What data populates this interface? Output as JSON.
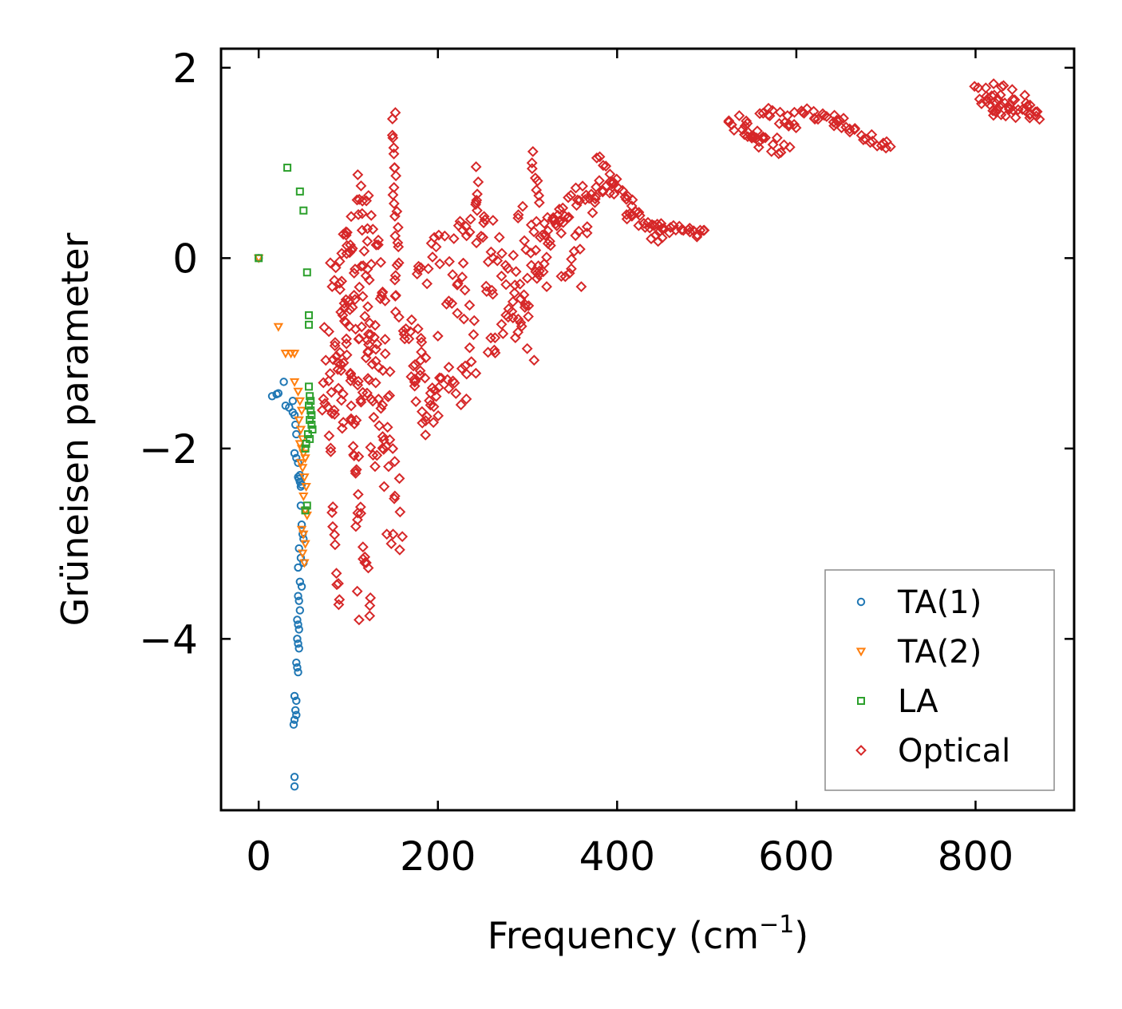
{
  "chart_data": {
    "type": "scatter",
    "title": "",
    "xlabel": "Frequency (cm",
    "xlabel_sup": "−1",
    "xlabel_close": ")",
    "ylabel": "Grüneisen parameter",
    "xlim": [
      -42,
      910
    ],
    "ylim": [
      -5.8,
      2.2
    ],
    "xticks": [
      0,
      200,
      400,
      600,
      800
    ],
    "xtick_labels": [
      "0",
      "200",
      "400",
      "600",
      "800"
    ],
    "yticks": [
      -4,
      -2,
      0,
      2
    ],
    "ytick_labels": [
      "−4",
      "−2",
      "0",
      "2"
    ],
    "grid": false,
    "legend_position": "lower-right",
    "series": [
      {
        "name": "TA(1)",
        "marker": "circle",
        "color": "#1f77b4",
        "points": [
          [
            0,
            0
          ],
          [
            15,
            -1.45
          ],
          [
            20,
            -1.43
          ],
          [
            22,
            -1.42
          ],
          [
            28,
            -1.3
          ],
          [
            30,
            -1.55
          ],
          [
            34,
            -1.57
          ],
          [
            38,
            -1.62
          ],
          [
            40,
            -1.65
          ],
          [
            41,
            -1.75
          ],
          [
            42,
            -1.85
          ],
          [
            38,
            -1.5
          ],
          [
            40,
            -2.05
          ],
          [
            42,
            -2.1
          ],
          [
            44,
            -2.15
          ],
          [
            44,
            -2.3
          ],
          [
            45,
            -2.32
          ],
          [
            46,
            -2.35
          ],
          [
            47,
            -2.4
          ],
          [
            48,
            -2.38
          ],
          [
            46,
            -2.28
          ],
          [
            47,
            -2.6
          ],
          [
            48,
            -2.8
          ],
          [
            49,
            -2.9
          ],
          [
            50,
            -2.95
          ],
          [
            45,
            -3.05
          ],
          [
            47,
            -3.15
          ],
          [
            50,
            -3.2
          ],
          [
            44,
            -3.25
          ],
          [
            46,
            -3.4
          ],
          [
            48,
            -3.45
          ],
          [
            44,
            -3.55
          ],
          [
            45,
            -3.6
          ],
          [
            46,
            -3.7
          ],
          [
            43,
            -3.8
          ],
          [
            44,
            -3.85
          ],
          [
            45,
            -3.9
          ],
          [
            43,
            -4.0
          ],
          [
            44,
            -4.05
          ],
          [
            45,
            -4.1
          ],
          [
            42,
            -4.25
          ],
          [
            43,
            -4.3
          ],
          [
            44,
            -4.35
          ],
          [
            40,
            -4.6
          ],
          [
            42,
            -4.65
          ],
          [
            41,
            -4.75
          ],
          [
            42,
            -4.8
          ],
          [
            40,
            -4.85
          ],
          [
            39,
            -4.9
          ],
          [
            40,
            -5.45
          ],
          [
            40,
            -5.55
          ]
        ]
      },
      {
        "name": "TA(2)",
        "marker": "triangle-down",
        "color": "#ff7f0e",
        "points": [
          [
            0,
            0
          ],
          [
            22,
            -0.72
          ],
          [
            30,
            -1.0
          ],
          [
            36,
            -1.0
          ],
          [
            40,
            -1.0
          ],
          [
            40,
            -1.3
          ],
          [
            44,
            -1.4
          ],
          [
            46,
            -1.5
          ],
          [
            48,
            -1.6
          ],
          [
            45,
            -1.7
          ],
          [
            47,
            -1.8
          ],
          [
            49,
            -1.9
          ],
          [
            46,
            -1.95
          ],
          [
            48,
            -2.0
          ],
          [
            50,
            -2.05
          ],
          [
            52,
            -2.1
          ],
          [
            47,
            -2.15
          ],
          [
            49,
            -2.2
          ],
          [
            51,
            -2.3
          ],
          [
            53,
            -2.4
          ],
          [
            50,
            -2.5
          ],
          [
            52,
            -2.65
          ],
          [
            54,
            -2.7
          ],
          [
            48,
            -2.85
          ],
          [
            50,
            -2.9
          ],
          [
            52,
            -3.0
          ],
          [
            49,
            -3.1
          ],
          [
            51,
            -3.2
          ]
        ]
      },
      {
        "name": "LA",
        "marker": "square",
        "color": "#2ca02c",
        "points": [
          [
            0,
            0
          ],
          [
            32,
            0.95
          ],
          [
            46,
            0.7
          ],
          [
            50,
            0.5
          ],
          [
            54,
            -0.15
          ],
          [
            56,
            -0.6
          ],
          [
            56,
            -0.7
          ],
          [
            56,
            -1.35
          ],
          [
            57,
            -1.45
          ],
          [
            58,
            -1.5
          ],
          [
            56,
            -1.55
          ],
          [
            58,
            -1.6
          ],
          [
            59,
            -1.65
          ],
          [
            57,
            -1.7
          ],
          [
            59,
            -1.75
          ],
          [
            60,
            -1.8
          ],
          [
            55,
            -1.85
          ],
          [
            57,
            -1.9
          ],
          [
            53,
            -1.95
          ],
          [
            52,
            -2.0
          ],
          [
            54,
            -2.6
          ],
          [
            52,
            -2.65
          ]
        ]
      },
      {
        "name": "Optical",
        "marker": "diamond",
        "color": "#d62728",
        "segments": [
          {
            "from": [
              70,
              -1.5
            ],
            "to": [
              80,
              -1.9
            ],
            "n": 8,
            "jitter": 0.25
          },
          {
            "from": [
              75,
              -0.9
            ],
            "to": [
              85,
              -1.6
            ],
            "n": 10,
            "jitter": 0.3
          },
          {
            "from": [
              80,
              -2.6
            ],
            "to": [
              90,
              -3.6
            ],
            "n": 10,
            "jitter": 0.2
          },
          {
            "from": [
              85,
              -0.5
            ],
            "to": [
              95,
              -1.8
            ],
            "n": 14,
            "jitter": 0.3
          },
          {
            "from": [
              88,
              -0.1
            ],
            "to": [
              100,
              -1.2
            ],
            "n": 14,
            "jitter": 0.3
          },
          {
            "from": [
              95,
              0.3
            ],
            "to": [
              110,
              -2.6
            ],
            "n": 24,
            "jitter": 0.35
          },
          {
            "from": [
              100,
              0.5
            ],
            "to": [
              115,
              -1.5
            ],
            "n": 20,
            "jitter": 0.35
          },
          {
            "from": [
              105,
              -1.9
            ],
            "to": [
              125,
              -3.9
            ],
            "n": 16,
            "jitter": 0.25
          },
          {
            "from": [
              110,
              0.8
            ],
            "to": [
              125,
              -0.8
            ],
            "n": 18,
            "jitter": 0.3
          },
          {
            "from": [
              115,
              -0.2
            ],
            "to": [
              130,
              -2.3
            ],
            "n": 18,
            "jitter": 0.3
          },
          {
            "from": [
              120,
              0.6
            ],
            "to": [
              140,
              -0.5
            ],
            "n": 16,
            "jitter": 0.3
          },
          {
            "from": [
              125,
              -0.7
            ],
            "to": [
              145,
              -2.1
            ],
            "n": 20,
            "jitter": 0.3
          },
          {
            "from": [
              140,
              -0.8
            ],
            "to": [
              160,
              -2.9
            ],
            "n": 14,
            "jitter": 0.3
          },
          {
            "from": [
              150,
              1.5
            ],
            "to": [
              155,
              -0.6
            ],
            "n": 26,
            "jitter": 0.05
          },
          {
            "from": [
              160,
              -0.6
            ],
            "to": [
              190,
              -1.7
            ],
            "n": 20,
            "jitter": 0.35
          },
          {
            "from": [
              170,
              -0.9
            ],
            "to": [
              200,
              -1.5
            ],
            "n": 18,
            "jitter": 0.35
          },
          {
            "from": [
              175,
              -0.3
            ],
            "to": [
              200,
              0.1
            ],
            "n": 10,
            "jitter": 0.2
          },
          {
            "from": [
              195,
              -1.1
            ],
            "to": [
              240,
              -1.4
            ],
            "n": 18,
            "jitter": 0.3
          },
          {
            "from": [
              200,
              0.0
            ],
            "to": [
              240,
              -0.8
            ],
            "n": 18,
            "jitter": 0.35
          },
          {
            "from": [
              220,
              0.1
            ],
            "to": [
              245,
              0.5
            ],
            "n": 12,
            "jitter": 0.3
          },
          {
            "from": [
              240,
              0.8
            ],
            "to": [
              260,
              -0.3
            ],
            "n": 14,
            "jitter": 0.3
          },
          {
            "from": [
              255,
              -0.9
            ],
            "to": [
              300,
              -0.5
            ],
            "n": 18,
            "jitter": 0.2
          },
          {
            "from": [
              260,
              0.3
            ],
            "to": [
              305,
              -0.8
            ],
            "n": 22,
            "jitter": 0.35
          },
          {
            "from": [
              290,
              0.4
            ],
            "to": [
              320,
              0.0
            ],
            "n": 14,
            "jitter": 0.3
          },
          {
            "from": [
              300,
              -0.3
            ],
            "to": [
              340,
              0.6
            ],
            "n": 18,
            "jitter": 0.25
          },
          {
            "from": [
              305,
              1.0
            ],
            "to": [
              320,
              0.3
            ],
            "n": 10,
            "jitter": 0.15
          },
          {
            "from": [
              320,
              0.2
            ],
            "to": [
              360,
              0.7
            ],
            "n": 18,
            "jitter": 0.15
          },
          {
            "from": [
              340,
              -0.2
            ],
            "to": [
              375,
              0.5
            ],
            "n": 14,
            "jitter": 0.15
          },
          {
            "from": [
              360,
              0.7
            ],
            "to": [
              395,
              0.75
            ],
            "n": 14,
            "jitter": 0.1
          },
          {
            "from": [
              380,
              1.0
            ],
            "to": [
              420,
              0.5
            ],
            "n": 18,
            "jitter": 0.1
          },
          {
            "from": [
              410,
              0.5
            ],
            "to": [
              450,
              0.2
            ],
            "n": 18,
            "jitter": 0.1
          },
          {
            "from": [
              440,
              0.35
            ],
            "to": [
              500,
              0.25
            ],
            "n": 22,
            "jitter": 0.05
          },
          {
            "from": [
              525,
              1.45
            ],
            "to": [
              560,
              1.3
            ],
            "n": 14,
            "jitter": 0.1
          },
          {
            "from": [
              540,
              1.3
            ],
            "to": [
              590,
              1.15
            ],
            "n": 16,
            "jitter": 0.1
          },
          {
            "from": [
              560,
              1.55
            ],
            "to": [
              600,
              1.4
            ],
            "n": 14,
            "jitter": 0.08
          },
          {
            "from": [
              600,
              1.55
            ],
            "to": [
              650,
              1.45
            ],
            "n": 16,
            "jitter": 0.05
          },
          {
            "from": [
              640,
              1.45
            ],
            "to": [
              705,
              1.15
            ],
            "n": 22,
            "jitter": 0.05
          },
          {
            "from": [
              800,
              1.75
            ],
            "to": [
              830,
              1.6
            ],
            "n": 14,
            "jitter": 0.1
          },
          {
            "from": [
              820,
              1.8
            ],
            "to": [
              870,
              1.55
            ],
            "n": 18,
            "jitter": 0.1
          },
          {
            "from": [
              820,
              1.55
            ],
            "to": [
              870,
              1.5
            ],
            "n": 14,
            "jitter": 0.05
          }
        ],
        "points": [
          [
            80,
            -0.05
          ],
          [
            82,
            -0.3
          ],
          [
            110,
            -3.5
          ],
          [
            112,
            -3.8
          ],
          [
            120,
            -3.2
          ],
          [
            140,
            -2.4
          ],
          [
            143,
            -2.9
          ],
          [
            150,
            -2.9
          ],
          [
            152,
            -2.5
          ],
          [
            148,
            -3.0
          ],
          [
            245,
            0.8
          ],
          [
            360,
            -0.3
          ],
          [
            305,
            1.0
          ],
          [
            820,
            1.5
          ],
          [
            812,
            1.7
          ]
        ]
      }
    ]
  }
}
